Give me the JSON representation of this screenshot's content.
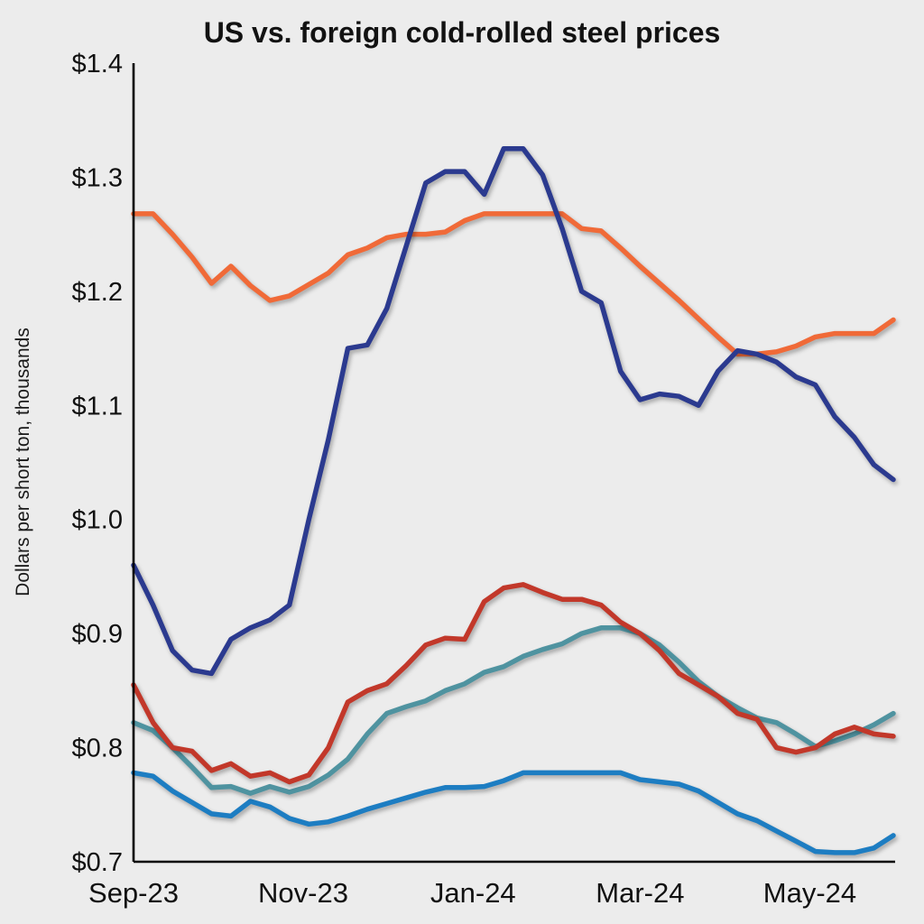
{
  "title": "US vs. foreign cold-rolled steel prices",
  "colors": {
    "background": "#ececec",
    "axis": "#000000",
    "title_text": "#121212"
  },
  "chart_data": {
    "type": "line",
    "title": "US vs. foreign cold-rolled steel prices",
    "xlabel": "",
    "ylabel": "Dollars per short ton, thousands",
    "ylim": [
      0.7,
      1.4
    ],
    "grid": false,
    "legend_position": "none",
    "yticks": [
      {
        "label": "$0.7",
        "value": 0.7
      },
      {
        "label": "$0.8",
        "value": 0.8
      },
      {
        "label": "$0.9",
        "value": 0.9
      },
      {
        "label": "$1.0",
        "value": 1.0
      },
      {
        "label": "$1.1",
        "value": 1.1
      },
      {
        "label": "$1.2",
        "value": 1.2
      },
      {
        "label": "$1.3",
        "value": 1.3
      },
      {
        "label": "$1.4",
        "value": 1.4
      }
    ],
    "xticks": [
      {
        "label": "Sep-23",
        "pos": 0.0
      },
      {
        "label": "Nov-23",
        "pos": 0.2233
      },
      {
        "label": "Jan-24",
        "pos": 0.4469
      },
      {
        "label": "Mar-24",
        "pos": 0.6667
      },
      {
        "label": "May-24",
        "pos": 0.8901
      }
    ],
    "x_unit": "weekly",
    "series": [
      {
        "name": "light-blue-line",
        "color": "#1d7dc2",
        "values": [
          0.778,
          0.775,
          0.762,
          0.752,
          0.742,
          0.74,
          0.753,
          0.748,
          0.738,
          0.733,
          0.735,
          0.74,
          0.746,
          0.751,
          0.756,
          0.761,
          0.765,
          0.765,
          0.766,
          0.771,
          0.778,
          0.778,
          0.778,
          0.778,
          0.778,
          0.778,
          0.772,
          0.77,
          0.768,
          0.762,
          0.752,
          0.742,
          0.736,
          0.727,
          0.718,
          0.709,
          0.708,
          0.708,
          0.712,
          0.723
        ]
      },
      {
        "name": "teal-line",
        "color": "#4f93a0",
        "values": [
          0.822,
          0.815,
          0.8,
          0.783,
          0.765,
          0.766,
          0.76,
          0.766,
          0.761,
          0.766,
          0.776,
          0.79,
          0.812,
          0.83,
          0.836,
          0.841,
          0.85,
          0.856,
          0.866,
          0.871,
          0.88,
          0.886,
          0.891,
          0.9,
          0.905,
          0.905,
          0.9,
          0.89,
          0.875,
          0.858,
          0.845,
          0.835,
          0.826,
          0.822,
          0.812,
          0.801,
          0.806,
          0.812,
          0.82,
          0.83
        ]
      },
      {
        "name": "red-line",
        "color": "#c2382a",
        "values": [
          0.855,
          0.822,
          0.8,
          0.797,
          0.78,
          0.786,
          0.775,
          0.778,
          0.77,
          0.776,
          0.8,
          0.84,
          0.85,
          0.856,
          0.872,
          0.89,
          0.896,
          0.895,
          0.928,
          0.94,
          0.943,
          0.936,
          0.93,
          0.93,
          0.925,
          0.91,
          0.9,
          0.885,
          0.865,
          0.855,
          0.845,
          0.83,
          0.825,
          0.8,
          0.796,
          0.8,
          0.812,
          0.818,
          0.812,
          0.81
        ]
      },
      {
        "name": "orange-line",
        "color": "#f06a38",
        "values": [
          1.268,
          1.268,
          1.25,
          1.23,
          1.207,
          1.222,
          1.205,
          1.192,
          1.196,
          1.206,
          1.216,
          1.232,
          1.238,
          1.247,
          1.25,
          1.25,
          1.252,
          1.262,
          1.268,
          1.268,
          1.268,
          1.268,
          1.268,
          1.255,
          1.253,
          1.238,
          1.222,
          1.207,
          1.192,
          1.176,
          1.16,
          1.145,
          1.145,
          1.147,
          1.152,
          1.16,
          1.163,
          1.163,
          1.163,
          1.175
        ]
      },
      {
        "name": "dark-blue-line",
        "color": "#2b3a8f",
        "values": [
          0.96,
          0.925,
          0.885,
          0.868,
          0.865,
          0.895,
          0.905,
          0.912,
          0.925,
          1.0,
          1.07,
          1.15,
          1.153,
          1.185,
          1.24,
          1.295,
          1.305,
          1.305,
          1.285,
          1.325,
          1.325,
          1.302,
          1.255,
          1.2,
          1.19,
          1.13,
          1.105,
          1.11,
          1.108,
          1.1,
          1.13,
          1.148,
          1.145,
          1.138,
          1.125,
          1.118,
          1.09,
          1.072,
          1.048,
          1.035
        ]
      }
    ]
  }
}
